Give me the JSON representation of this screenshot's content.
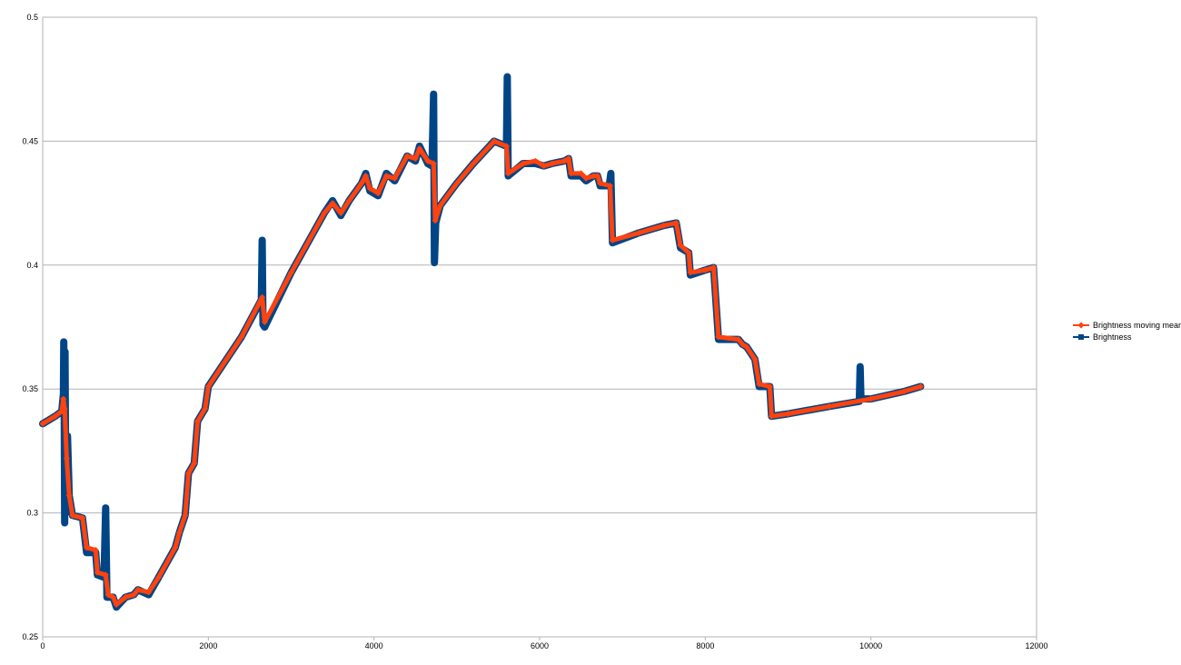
{
  "chart_data": {
    "type": "line",
    "title": "",
    "xlabel": "",
    "ylabel": "",
    "xlim": [
      0,
      12000
    ],
    "ylim": [
      0.25,
      0.5
    ],
    "x_ticks": [
      "0",
      "2000",
      "4000",
      "6000",
      "8000",
      "10000",
      "12000"
    ],
    "y_ticks": [
      "0.25",
      "0.3",
      "0.35",
      "0.4",
      "0.45",
      "0.5"
    ],
    "grid": "horizontal",
    "legend_position": "right",
    "series": [
      {
        "name": "Brightness moving mean",
        "color": "#ff420e",
        "marker": "diamond",
        "points": [
          [
            0,
            0.336
          ],
          [
            150,
            0.339
          ],
          [
            230,
            0.341
          ],
          [
            250,
            0.346
          ],
          [
            265,
            0.342
          ],
          [
            290,
            0.322
          ],
          [
            320,
            0.307
          ],
          [
            360,
            0.299
          ],
          [
            480,
            0.298
          ],
          [
            530,
            0.286
          ],
          [
            640,
            0.285
          ],
          [
            660,
            0.276
          ],
          [
            760,
            0.275
          ],
          [
            790,
            0.267
          ],
          [
            850,
            0.266
          ],
          [
            890,
            0.263
          ],
          [
            1000,
            0.266
          ],
          [
            1100,
            0.267
          ],
          [
            1150,
            0.269
          ],
          [
            1280,
            0.268
          ],
          [
            1400,
            0.274
          ],
          [
            1600,
            0.286
          ],
          [
            1650,
            0.292
          ],
          [
            1720,
            0.299
          ],
          [
            1760,
            0.316
          ],
          [
            1830,
            0.32
          ],
          [
            1870,
            0.337
          ],
          [
            1960,
            0.342
          ],
          [
            2000,
            0.351
          ],
          [
            2400,
            0.371
          ],
          [
            2650,
            0.387
          ],
          [
            2680,
            0.377
          ],
          [
            3000,
            0.397
          ],
          [
            3400,
            0.421
          ],
          [
            3500,
            0.425
          ],
          [
            3600,
            0.421
          ],
          [
            3700,
            0.426
          ],
          [
            3850,
            0.433
          ],
          [
            3900,
            0.436
          ],
          [
            3950,
            0.431
          ],
          [
            4050,
            0.429
          ],
          [
            4150,
            0.436
          ],
          [
            4250,
            0.435
          ],
          [
            4400,
            0.444
          ],
          [
            4500,
            0.443
          ],
          [
            4550,
            0.447
          ],
          [
            4650,
            0.442
          ],
          [
            4720,
            0.441
          ],
          [
            4740,
            0.418
          ],
          [
            4800,
            0.424
          ],
          [
            5000,
            0.433
          ],
          [
            5200,
            0.441
          ],
          [
            5450,
            0.45
          ],
          [
            5600,
            0.448
          ],
          [
            5620,
            0.437
          ],
          [
            5800,
            0.441
          ],
          [
            5950,
            0.442
          ],
          [
            6050,
            0.44
          ],
          [
            6150,
            0.441
          ],
          [
            6300,
            0.442
          ],
          [
            6350,
            0.443
          ],
          [
            6380,
            0.437
          ],
          [
            6500,
            0.437
          ],
          [
            6560,
            0.435
          ],
          [
            6650,
            0.436
          ],
          [
            6700,
            0.436
          ],
          [
            6730,
            0.433
          ],
          [
            6850,
            0.432
          ],
          [
            6880,
            0.41
          ],
          [
            7200,
            0.413
          ],
          [
            7500,
            0.416
          ],
          [
            7650,
            0.417
          ],
          [
            7700,
            0.408
          ],
          [
            7800,
            0.405
          ],
          [
            7820,
            0.397
          ],
          [
            8000,
            0.398
          ],
          [
            8100,
            0.399
          ],
          [
            8160,
            0.371
          ],
          [
            8400,
            0.37
          ],
          [
            8450,
            0.368
          ],
          [
            8500,
            0.367
          ],
          [
            8600,
            0.362
          ],
          [
            8650,
            0.352
          ],
          [
            8780,
            0.351
          ],
          [
            8800,
            0.339
          ],
          [
            9000,
            0.34
          ],
          [
            9500,
            0.343
          ],
          [
            10000,
            0.346
          ],
          [
            10400,
            0.349
          ],
          [
            10600,
            0.351
          ]
        ]
      },
      {
        "name": "Brightness",
        "color": "#004586",
        "marker": "square",
        "points": [
          [
            0,
            0.336
          ],
          [
            150,
            0.339
          ],
          [
            230,
            0.341
          ],
          [
            250,
            0.348
          ],
          [
            255,
            0.369
          ],
          [
            260,
            0.34
          ],
          [
            265,
            0.296
          ],
          [
            270,
            0.365
          ],
          [
            280,
            0.3
          ],
          [
            300,
            0.331
          ],
          [
            320,
            0.307
          ],
          [
            360,
            0.299
          ],
          [
            480,
            0.298
          ],
          [
            530,
            0.284
          ],
          [
            640,
            0.284
          ],
          [
            660,
            0.275
          ],
          [
            740,
            0.274
          ],
          [
            760,
            0.302
          ],
          [
            775,
            0.266
          ],
          [
            850,
            0.266
          ],
          [
            890,
            0.262
          ],
          [
            1000,
            0.266
          ],
          [
            1100,
            0.267
          ],
          [
            1150,
            0.269
          ],
          [
            1280,
            0.267
          ],
          [
            1400,
            0.274
          ],
          [
            1600,
            0.286
          ],
          [
            1650,
            0.292
          ],
          [
            1720,
            0.299
          ],
          [
            1760,
            0.316
          ],
          [
            1830,
            0.32
          ],
          [
            1870,
            0.337
          ],
          [
            1960,
            0.342
          ],
          [
            2000,
            0.351
          ],
          [
            2400,
            0.371
          ],
          [
            2640,
            0.386
          ],
          [
            2650,
            0.41
          ],
          [
            2660,
            0.376
          ],
          [
            2680,
            0.375
          ],
          [
            3000,
            0.397
          ],
          [
            3400,
            0.421
          ],
          [
            3500,
            0.426
          ],
          [
            3600,
            0.42
          ],
          [
            3700,
            0.426
          ],
          [
            3850,
            0.433
          ],
          [
            3900,
            0.437
          ],
          [
            3950,
            0.43
          ],
          [
            4050,
            0.428
          ],
          [
            4150,
            0.437
          ],
          [
            4250,
            0.434
          ],
          [
            4400,
            0.444
          ],
          [
            4500,
            0.442
          ],
          [
            4550,
            0.448
          ],
          [
            4650,
            0.441
          ],
          [
            4700,
            0.44
          ],
          [
            4720,
            0.469
          ],
          [
            4730,
            0.401
          ],
          [
            4745,
            0.417
          ],
          [
            4800,
            0.424
          ],
          [
            5000,
            0.433
          ],
          [
            5200,
            0.441
          ],
          [
            5450,
            0.45
          ],
          [
            5600,
            0.448
          ],
          [
            5610,
            0.476
          ],
          [
            5620,
            0.436
          ],
          [
            5800,
            0.441
          ],
          [
            5950,
            0.441
          ],
          [
            6050,
            0.44
          ],
          [
            6150,
            0.441
          ],
          [
            6300,
            0.442
          ],
          [
            6350,
            0.443
          ],
          [
            6380,
            0.436
          ],
          [
            6500,
            0.436
          ],
          [
            6560,
            0.434
          ],
          [
            6650,
            0.436
          ],
          [
            6700,
            0.436
          ],
          [
            6730,
            0.432
          ],
          [
            6840,
            0.432
          ],
          [
            6860,
            0.437
          ],
          [
            6880,
            0.409
          ],
          [
            7200,
            0.413
          ],
          [
            7500,
            0.416
          ],
          [
            7650,
            0.417
          ],
          [
            7700,
            0.407
          ],
          [
            7800,
            0.405
          ],
          [
            7820,
            0.396
          ],
          [
            8000,
            0.398
          ],
          [
            8100,
            0.399
          ],
          [
            8160,
            0.37
          ],
          [
            8400,
            0.37
          ],
          [
            8450,
            0.368
          ],
          [
            8500,
            0.367
          ],
          [
            8600,
            0.362
          ],
          [
            8650,
            0.351
          ],
          [
            8780,
            0.351
          ],
          [
            8800,
            0.339
          ],
          [
            9000,
            0.34
          ],
          [
            9500,
            0.343
          ],
          [
            9860,
            0.345
          ],
          [
            9870,
            0.359
          ],
          [
            9880,
            0.346
          ],
          [
            10000,
            0.346
          ],
          [
            10400,
            0.349
          ],
          [
            10600,
            0.351
          ]
        ]
      }
    ]
  }
}
